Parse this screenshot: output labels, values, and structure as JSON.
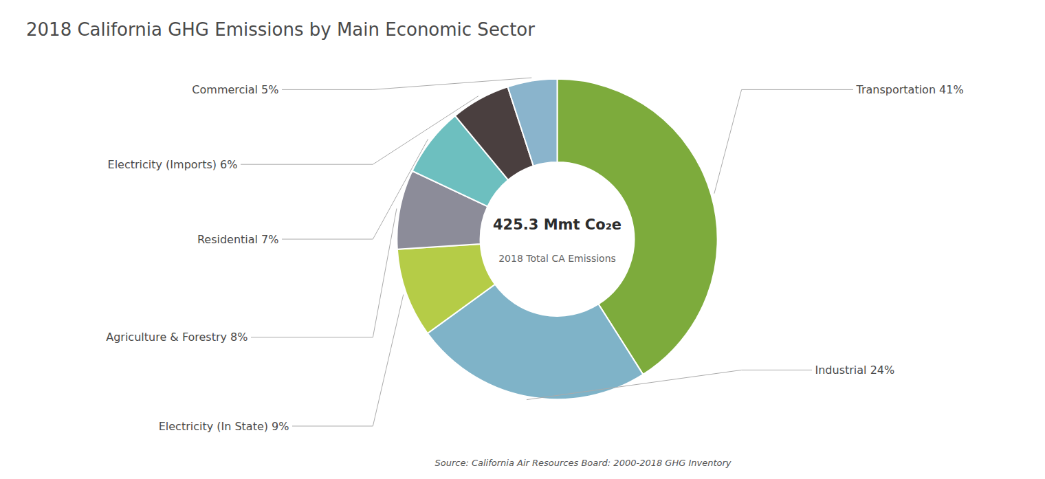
{
  "chart_data": {
    "type": "pie",
    "title": "2018 California GHG Emissions by Main Economic Sector",
    "categories": [
      "Transportation",
      "Industrial",
      "Electricity (In State)",
      "Agriculture & Forestry",
      "Residential",
      "Electricity (Imports)",
      "Commercial"
    ],
    "values": [
      41,
      24,
      9,
      8,
      7,
      6,
      5
    ],
    "colors": [
      "#7dab3c",
      "#7fb3c8",
      "#b5cc47",
      "#8c8c99",
      "#6dbfbf",
      "#4a3f3f",
      "#8ab4cc"
    ],
    "data_labels": true,
    "value_labels": [
      "Transportation 41%",
      "Industrial 24%",
      "Electricity (In State) 9%",
      "Agriculture & Forestry 8%",
      "Residential 7%",
      "Electricity (Imports) 6%",
      "Commercial 5%"
    ],
    "annotations": [
      "425.3 Mmt Co₂e",
      "2018 Total CA Emissions",
      "Source: California Air Resources Board: 2000-2018 GHG Inventory"
    ]
  }
}
